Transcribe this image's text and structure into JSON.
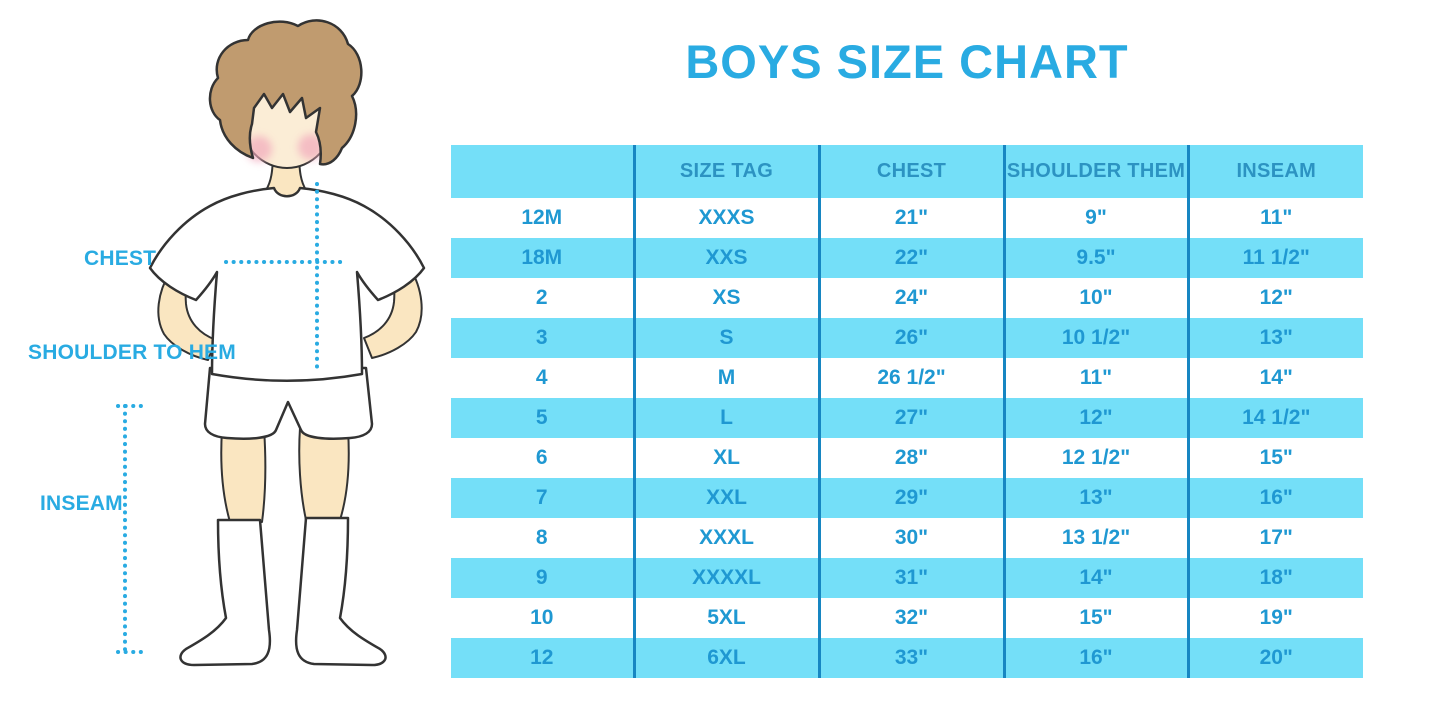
{
  "title": "BOYS SIZE CHART",
  "figure": {
    "chest_label": "CHEST",
    "shoulder_to_hem_label": "SHOULDER TO HEM",
    "inseam_label": "INSEAM"
  },
  "chart_data": {
    "type": "table",
    "title": "BOYS SIZE CHART",
    "columns": [
      "",
      "SIZE TAG",
      "CHEST",
      "SHOULDER THEM",
      "INSEAM"
    ],
    "rows": [
      [
        "12M",
        "XXXS",
        "21\"",
        "9\"",
        "11\""
      ],
      [
        "18M",
        "XXS",
        "22\"",
        "9.5\"",
        "11 1/2\""
      ],
      [
        "2",
        "XS",
        "24\"",
        "10\"",
        "12\""
      ],
      [
        "3",
        "S",
        "26\"",
        "10 1/2\"",
        "13\""
      ],
      [
        "4",
        "M",
        "26 1/2\"",
        "11\"",
        "14\""
      ],
      [
        "5",
        "L",
        "27\"",
        "12\"",
        "14 1/2\""
      ],
      [
        "6",
        "XL",
        "28\"",
        "12 1/2\"",
        "15\""
      ],
      [
        "7",
        "XXL",
        "29\"",
        "13\"",
        "16\""
      ],
      [
        "8",
        "XXXL",
        "30\"",
        "13 1/2\"",
        "17\""
      ],
      [
        "9",
        "XXXXL",
        "31\"",
        "14\"",
        "18\""
      ],
      [
        "10",
        "5XL",
        "32\"",
        "15\"",
        "19\""
      ],
      [
        "12",
        "6XL",
        "33\"",
        "16\"",
        "20\""
      ]
    ],
    "row_striping": "white / light-cyan alternating, header cyan",
    "legend_position": "none",
    "grid": "vertical dividers only"
  },
  "colors": {
    "accent_blue": "#29ABE2",
    "band_cyan": "#74DFF8",
    "divider_blue": "#1786C2",
    "header_text": "#2C93C2",
    "cell_text": "#1F98D2",
    "hair_brown": "#C09B6F",
    "skin": "#FAE6C1",
    "face": "#FBEDD6",
    "blush_pink": "#F2A9BC",
    "outline": "#333333"
  }
}
